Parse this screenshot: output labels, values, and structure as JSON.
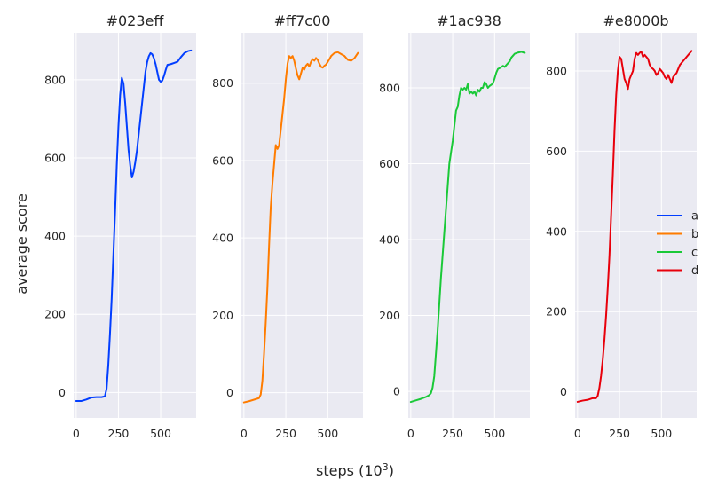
{
  "chart_data": {
    "type": "line",
    "xlabel_text": "steps (10",
    "xlabel_sup": "3",
    "xlabel_close": ")",
    "ylabel": "average score",
    "legend": {
      "placement": "right",
      "entries": [
        {
          "label": "a",
          "color": "#023eff"
        },
        {
          "label": "b",
          "color": "#ff7c00"
        },
        {
          "label": "c",
          "color": "#1ac938"
        },
        {
          "label": "d",
          "color": "#e8000b"
        }
      ]
    },
    "grid": true,
    "panels": [
      {
        "title": "#023eff",
        "color": "#023eff",
        "xlim": [
          -15,
          710
        ],
        "ylim": [
          -65,
          920
        ],
        "xticks": [
          0,
          250,
          500
        ],
        "yticks": [
          0,
          200,
          400,
          600,
          800
        ],
        "x": [
          0,
          30,
          60,
          90,
          120,
          150,
          170,
          180,
          190,
          200,
          210,
          220,
          230,
          240,
          250,
          260,
          270,
          280,
          290,
          300,
          310,
          320,
          330,
          340,
          350,
          360,
          370,
          380,
          390,
          400,
          410,
          420,
          430,
          440,
          450,
          460,
          470,
          480,
          490,
          500,
          510,
          520,
          530,
          540,
          560,
          580,
          600,
          620,
          640,
          660,
          680
        ],
        "y": [
          -22,
          -22,
          -18,
          -13,
          -12,
          -12,
          -10,
          10,
          70,
          150,
          240,
          350,
          460,
          580,
          680,
          760,
          805,
          790,
          740,
          680,
          620,
          580,
          550,
          565,
          590,
          620,
          660,
          700,
          740,
          780,
          820,
          845,
          860,
          868,
          865,
          855,
          840,
          820,
          800,
          795,
          798,
          810,
          825,
          838,
          840,
          843,
          846,
          858,
          868,
          873,
          875
        ]
      },
      {
        "title": "#ff7c00",
        "color": "#ff7c00",
        "xlim": [
          -15,
          710
        ],
        "ylim": [
          -65,
          930
        ],
        "xticks": [
          0,
          250,
          500
        ],
        "yticks": [
          0,
          200,
          400,
          600,
          800
        ],
        "x": [
          0,
          30,
          60,
          90,
          100,
          110,
          120,
          130,
          140,
          150,
          160,
          170,
          180,
          190,
          200,
          210,
          220,
          230,
          240,
          250,
          260,
          270,
          280,
          290,
          300,
          310,
          320,
          330,
          340,
          350,
          360,
          370,
          380,
          390,
          400,
          410,
          420,
          430,
          440,
          450,
          460,
          470,
          480,
          490,
          500,
          510,
          520,
          540,
          560,
          580,
          600,
          620,
          640,
          660,
          680
        ],
        "y": [
          -25,
          -22,
          -18,
          -14,
          -5,
          30,
          100,
          180,
          270,
          380,
          480,
          540,
          590,
          640,
          630,
          640,
          680,
          720,
          760,
          810,
          850,
          870,
          865,
          870,
          858,
          838,
          820,
          810,
          825,
          840,
          835,
          845,
          850,
          843,
          855,
          862,
          858,
          865,
          860,
          850,
          842,
          840,
          845,
          848,
          855,
          862,
          870,
          878,
          880,
          875,
          870,
          860,
          858,
          865,
          878
        ]
      },
      {
        "title": "#1ac938",
        "color": "#1ac938",
        "xlim": [
          -15,
          710
        ],
        "ylim": [
          -70,
          945
        ],
        "xticks": [
          0,
          250,
          500
        ],
        "yticks": [
          0,
          200,
          400,
          600,
          800
        ],
        "x": [
          0,
          30,
          60,
          90,
          110,
          120,
          130,
          140,
          150,
          160,
          170,
          180,
          190,
          200,
          210,
          220,
          230,
          240,
          250,
          260,
          270,
          280,
          290,
          300,
          310,
          320,
          330,
          340,
          350,
          360,
          370,
          380,
          390,
          400,
          410,
          420,
          430,
          440,
          450,
          460,
          470,
          480,
          490,
          500,
          510,
          520,
          530,
          540,
          550,
          560,
          570,
          580,
          590,
          600,
          610,
          620,
          640,
          660,
          680
        ],
        "y": [
          -28,
          -24,
          -20,
          -15,
          -10,
          -5,
          10,
          40,
          100,
          160,
          230,
          300,
          360,
          420,
          480,
          540,
          600,
          630,
          660,
          700,
          740,
          750,
          780,
          800,
          795,
          800,
          795,
          810,
          785,
          790,
          785,
          790,
          780,
          795,
          790,
          800,
          800,
          815,
          810,
          800,
          805,
          808,
          812,
          825,
          840,
          850,
          852,
          855,
          858,
          855,
          860,
          865,
          870,
          880,
          885,
          890,
          893,
          895,
          892
        ]
      },
      {
        "title": "#e8000b",
        "color": "#e8000b",
        "xlim": [
          -15,
          710
        ],
        "ylim": [
          -65,
          895
        ],
        "xticks": [
          0,
          250,
          500
        ],
        "yticks": [
          0,
          200,
          400,
          600,
          800
        ],
        "x": [
          0,
          30,
          60,
          90,
          110,
          120,
          130,
          140,
          150,
          160,
          170,
          180,
          190,
          200,
          210,
          220,
          230,
          240,
          250,
          260,
          270,
          280,
          290,
          300,
          310,
          320,
          330,
          340,
          350,
          360,
          370,
          380,
          390,
          400,
          410,
          420,
          430,
          440,
          450,
          460,
          470,
          480,
          490,
          500,
          510,
          520,
          530,
          540,
          550,
          560,
          570,
          580,
          590,
          600,
          610,
          620,
          630,
          640,
          650,
          660,
          670,
          680
        ],
        "y": [
          -25,
          -22,
          -20,
          -16,
          -16,
          -10,
          10,
          40,
          80,
          130,
          190,
          260,
          340,
          440,
          540,
          650,
          740,
          800,
          835,
          830,
          805,
          780,
          770,
          755,
          780,
          790,
          800,
          830,
          845,
          840,
          845,
          848,
          835,
          840,
          835,
          830,
          815,
          808,
          805,
          800,
          790,
          795,
          805,
          800,
          795,
          785,
          780,
          790,
          780,
          770,
          785,
          790,
          795,
          805,
          815,
          820,
          825,
          830,
          835,
          840,
          845,
          850
        ]
      }
    ]
  }
}
